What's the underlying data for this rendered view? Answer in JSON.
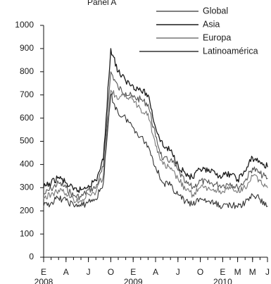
{
  "chart_data": {
    "type": "line",
    "top_text": "Panel A",
    "ylim": [
      0,
      1000
    ],
    "yticks": [
      0,
      100,
      200,
      300,
      400,
      500,
      600,
      700,
      800,
      900,
      1000
    ],
    "x_range": [
      "2008-01",
      "2010-07"
    ],
    "xtick_labels": [
      "E",
      "A",
      "J",
      "O",
      "E",
      "A",
      "J",
      "O",
      "E",
      "M",
      "M",
      "J"
    ],
    "xtick_dates": [
      "2008-01",
      "2008-04",
      "2008-07",
      "2008-10",
      "2009-01",
      "2009-04",
      "2009-07",
      "2009-10",
      "2010-01",
      "2010-03",
      "2010-05",
      "2010-07"
    ],
    "year_labels": [
      {
        "label": "2008",
        "date": "2008-01"
      },
      {
        "label": "2009",
        "date": "2009-01"
      },
      {
        "label": "2010",
        "date": "2010-01"
      }
    ],
    "legend_position": "top-right",
    "grid": false,
    "series": [
      {
        "name": "Global",
        "color": "#555555",
        "x": [
          "2008-01",
          "2008-02",
          "2008-03",
          "2008-04",
          "2008-05",
          "2008-06",
          "2008-07",
          "2008-08",
          "2008-09",
          "2008-10",
          "2008-11",
          "2008-12",
          "2009-01",
          "2009-02",
          "2009-03",
          "2009-04",
          "2009-05",
          "2009-06",
          "2009-07",
          "2009-08",
          "2009-09",
          "2009-10",
          "2009-11",
          "2009-12",
          "2010-01",
          "2010-02",
          "2010-03",
          "2010-04",
          "2010-05",
          "2010-06",
          "2010-07"
        ],
        "values": [
          270,
          295,
          320,
          300,
          265,
          260,
          290,
          300,
          390,
          800,
          730,
          710,
          690,
          680,
          660,
          520,
          420,
          420,
          375,
          320,
          300,
          330,
          320,
          315,
          310,
          320,
          300,
          330,
          385,
          360,
          340
        ]
      },
      {
        "name": "Asia",
        "color": "#1a1a1a",
        "x": [
          "2008-01",
          "2008-02",
          "2008-03",
          "2008-04",
          "2008-05",
          "2008-06",
          "2008-07",
          "2008-08",
          "2008-09",
          "2008-10",
          "2008-11",
          "2008-12",
          "2009-01",
          "2009-02",
          "2009-03",
          "2009-04",
          "2009-05",
          "2009-06",
          "2009-07",
          "2009-08",
          "2009-09",
          "2009-10",
          "2009-11",
          "2009-12",
          "2010-01",
          "2010-02",
          "2010-03",
          "2010-04",
          "2010-05",
          "2010-06",
          "2010-07"
        ],
        "values": [
          300,
          320,
          345,
          320,
          290,
          290,
          310,
          330,
          420,
          900,
          800,
          760,
          740,
          720,
          700,
          560,
          480,
          460,
          400,
          360,
          340,
          380,
          370,
          360,
          350,
          360,
          335,
          370,
          430,
          410,
          390
        ]
      },
      {
        "name": "Europa",
        "color": "#777777",
        "x": [
          "2008-01",
          "2008-02",
          "2008-03",
          "2008-04",
          "2008-05",
          "2008-06",
          "2008-07",
          "2008-08",
          "2008-09",
          "2008-10",
          "2008-11",
          "2008-12",
          "2009-01",
          "2009-02",
          "2009-03",
          "2009-04",
          "2009-05",
          "2009-06",
          "2009-07",
          "2009-08",
          "2009-09",
          "2009-10",
          "2009-11",
          "2009-12",
          "2010-01",
          "2010-02",
          "2010-03",
          "2010-04",
          "2010-05",
          "2010-06",
          "2010-07"
        ],
        "values": [
          255,
          270,
          290,
          275,
          250,
          245,
          270,
          280,
          355,
          720,
          680,
          700,
          680,
          640,
          620,
          480,
          400,
          380,
          340,
          290,
          270,
          300,
          295,
          290,
          285,
          295,
          280,
          300,
          350,
          330,
          300
        ]
      },
      {
        "name": "Latinoamérica",
        "color": "#333333",
        "x": [
          "2008-01",
          "2008-02",
          "2008-03",
          "2008-04",
          "2008-05",
          "2008-06",
          "2008-07",
          "2008-08",
          "2008-09",
          "2008-10",
          "2008-11",
          "2008-12",
          "2009-01",
          "2009-02",
          "2009-03",
          "2009-04",
          "2009-05",
          "2009-06",
          "2009-07",
          "2009-08",
          "2009-09",
          "2009-10",
          "2009-11",
          "2009-12",
          "2010-01",
          "2010-02",
          "2010-03",
          "2010-04",
          "2010-05",
          "2010-06",
          "2010-07"
        ],
        "values": [
          220,
          235,
          255,
          245,
          225,
          220,
          240,
          250,
          320,
          700,
          620,
          600,
          560,
          520,
          480,
          390,
          320,
          310,
          270,
          240,
          225,
          255,
          240,
          230,
          220,
          230,
          215,
          235,
          270,
          250,
          220
        ]
      }
    ]
  }
}
